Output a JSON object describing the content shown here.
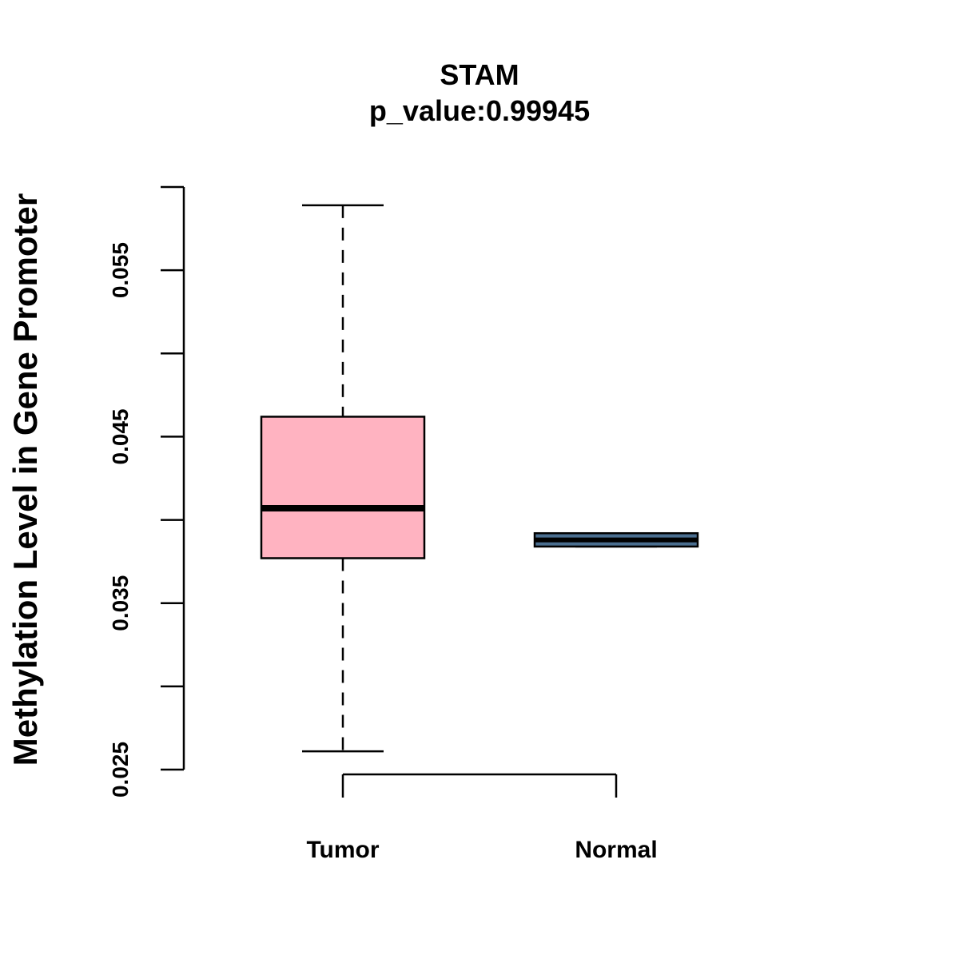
{
  "chart_data": {
    "type": "boxplot",
    "title": "STAM",
    "subtitle": "p_value:0.99945",
    "xlabel": "",
    "ylabel": "Methylation Level in Gene Promoter",
    "ylim": [
      0.025,
      0.06
    ],
    "yticks": [
      0.025,
      0.03,
      0.035,
      0.04,
      0.045,
      0.05,
      0.055,
      0.06
    ],
    "ytick_labels": [
      "0.025",
      "",
      "0.035",
      "",
      "0.045",
      "",
      "0.055",
      ""
    ],
    "categories": [
      "Tumor",
      "Normal"
    ],
    "boxes": [
      {
        "name": "Tumor",
        "whisker_low": 0.0261,
        "q1": 0.0377,
        "median": 0.0407,
        "q3": 0.0462,
        "whisker_high": 0.0589,
        "color": "#FFB3C1"
      },
      {
        "name": "Normal",
        "whisker_low": 0.0384,
        "q1": 0.0384,
        "median": 0.0388,
        "q3": 0.0392,
        "whisker_high": 0.0392,
        "color": "#4A6E8F"
      }
    ]
  }
}
